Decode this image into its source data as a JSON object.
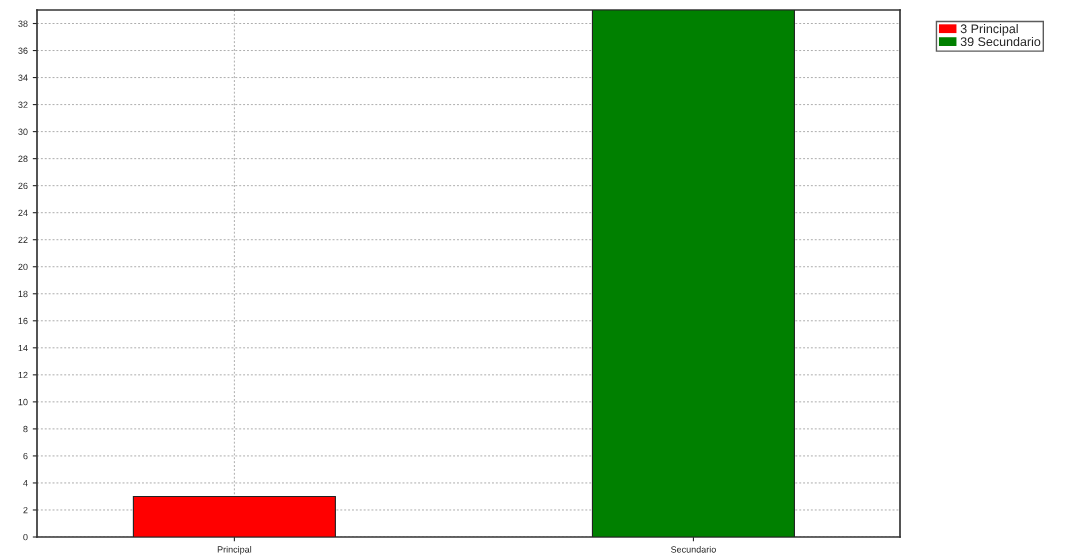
{
  "chart_data": {
    "type": "bar",
    "categories": [
      "Principal",
      "Secundario"
    ],
    "series": [
      {
        "name": "3 Principal",
        "color": "#ff0000",
        "values": [
          3,
          null
        ]
      },
      {
        "name": "39 Secundario",
        "color": "#008000",
        "values": [
          null,
          39
        ]
      }
    ],
    "ylim": [
      0,
      39
    ],
    "yticks": [
      0,
      2,
      4,
      6,
      8,
      10,
      12,
      14,
      16,
      18,
      20,
      22,
      24,
      26,
      28,
      30,
      32,
      34,
      36,
      38
    ],
    "grid": true,
    "legend": "top right"
  }
}
